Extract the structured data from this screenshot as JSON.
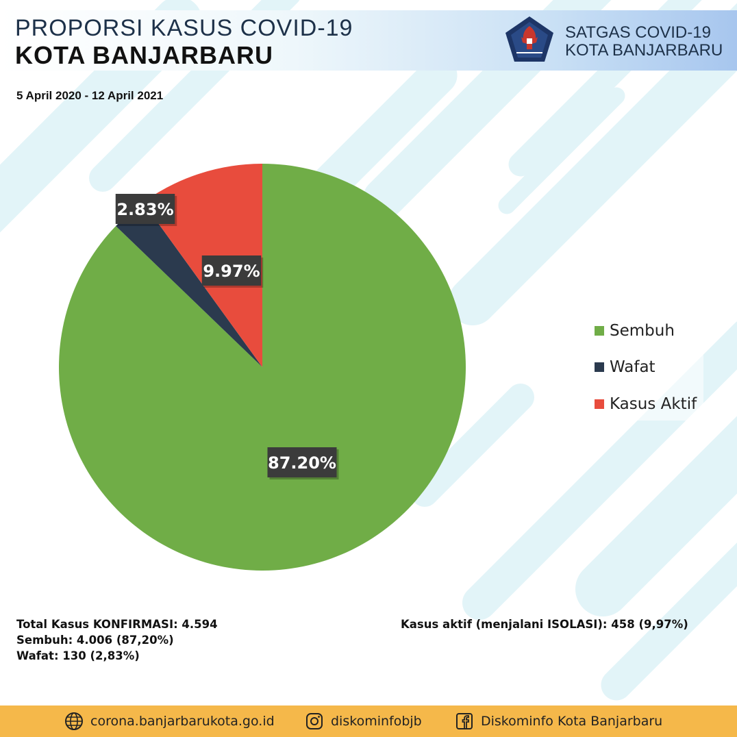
{
  "header": {
    "title_line1": "PROPORSI KASUS COVID-19",
    "title_line2": "KOTA BANJARBARU",
    "date_range": "5 April 2020 - 12 April 2021",
    "org_line1": "SATGAS COVID-19",
    "org_line2": "KOTA BANJARBARU"
  },
  "chart_data": {
    "type": "pie",
    "slices": [
      {
        "label": "Sembuh",
        "value": 87.2,
        "display": "87.20%",
        "color": "#70ad47"
      },
      {
        "label": "Wafat",
        "value": 2.83,
        "display": "2.83%",
        "color": "#2b3a4e"
      },
      {
        "label": "Kasus Aktif",
        "value": 9.97,
        "display": "9.97%",
        "color": "#e84c3d"
      }
    ],
    "legend_position": "right"
  },
  "summary": {
    "total": "Total Kasus KONFIRMASI: 4.594",
    "sembuh": "Sembuh: 4.006 (87,20%)",
    "wafat": "Wafat: 130 (2,83%)",
    "aktif": "Kasus aktif (menjalani ISOLASI): 458 (9,97%)"
  },
  "footer": {
    "website": "corona.banjarbarukota.go.id",
    "instagram": "diskominfobjb",
    "facebook": "Diskominfo Kota Banjarbaru"
  },
  "icons": [
    "globe-icon",
    "instagram-icon",
    "facebook-icon",
    "garuda-logo-icon"
  ]
}
